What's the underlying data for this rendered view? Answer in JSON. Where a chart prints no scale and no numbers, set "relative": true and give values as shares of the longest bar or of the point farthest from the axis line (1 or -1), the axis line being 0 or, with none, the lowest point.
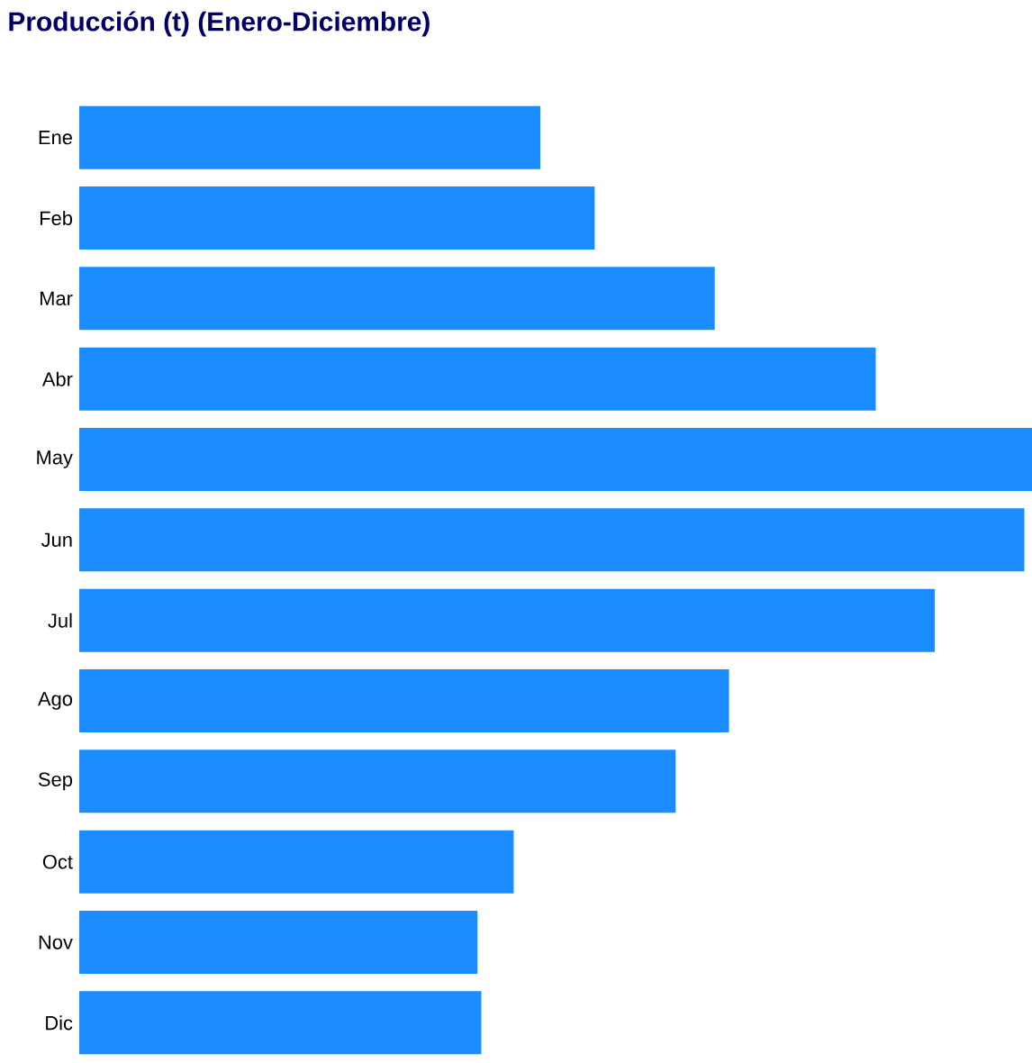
{
  "chart_data": {
    "type": "bar",
    "orientation": "horizontal",
    "relative": true,
    "title": "Producción (t) (Enero-Diciembre)",
    "categories": [
      "Ene",
      "Feb",
      "Mar",
      "Abr",
      "May",
      "Jun",
      "Jul",
      "Ago",
      "Sep",
      "Oct",
      "Nov",
      "Dic"
    ],
    "values": [
      0.484,
      0.541,
      0.667,
      0.836,
      1,
      0.992,
      0.898,
      0.682,
      0.626,
      0.456,
      0.418,
      0.422
    ],
    "color": "#1a8cff"
  }
}
